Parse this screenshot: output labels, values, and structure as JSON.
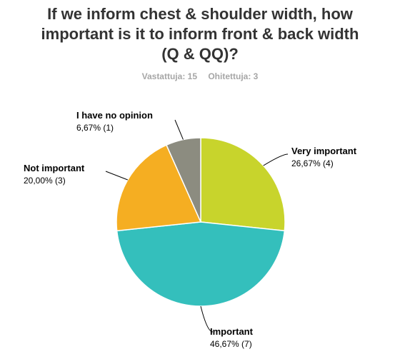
{
  "chart_data": {
    "type": "pie",
    "title": "If we inform chest & shoulder width, how\nimportant is it to inform front & back width\n(Q & QQ)?",
    "answered_label": "Vastattuja: 15",
    "skipped_label": "Ohitettuja: 3",
    "slices": [
      {
        "name": "Very important",
        "value_label": "26,67% (4)",
        "percent": 26.67,
        "count": 4,
        "color": "#c8d42c"
      },
      {
        "name": "Important",
        "value_label": "46,67% (7)",
        "percent": 46.67,
        "count": 7,
        "color": "#34bfbc"
      },
      {
        "name": "Not important",
        "value_label": "20,00% (3)",
        "percent": 20.0,
        "count": 3,
        "color": "#f5ae22"
      },
      {
        "name": "I have no opinion",
        "value_label": "6,67% (1)",
        "percent": 6.67,
        "count": 1,
        "color": "#8c8c80"
      }
    ]
  }
}
